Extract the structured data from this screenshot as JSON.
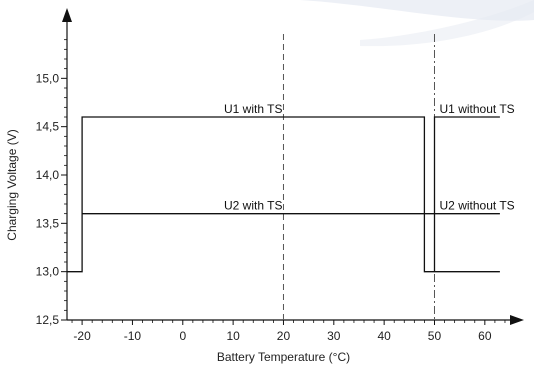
{
  "chart_data": {
    "type": "line",
    "title": "",
    "xlabel": "Battery Temperature (°C)",
    "ylabel": "Charging Voltage (V)",
    "xlim": [
      -23,
      65
    ],
    "ylim": [
      12.5,
      15.5
    ],
    "x_ticks": [
      -20,
      -10,
      0,
      10,
      20,
      30,
      40,
      50,
      60
    ],
    "x_tick_labels": [
      "-20",
      "-10",
      "0",
      "10",
      "20",
      "30",
      "40",
      "50",
      "60"
    ],
    "y_ticks": [
      12.5,
      13.0,
      13.5,
      14.0,
      14.5,
      15.0
    ],
    "y_tick_labels": [
      "12,5",
      "13,0",
      "13,5",
      "14,0",
      "14,5",
      "15,0"
    ],
    "grid": false,
    "series": [
      {
        "name": "",
        "x": [
          -23,
          -20,
          -20,
          48,
          48,
          63
        ],
        "y": [
          13.0,
          13.0,
          14.6,
          14.6,
          13.0,
          13.0
        ]
      },
      {
        "name": "",
        "x": [
          50,
          50,
          63
        ],
        "y": [
          13.0,
          14.6,
          14.6
        ]
      },
      {
        "name": "",
        "x": [
          -20,
          63
        ],
        "y": [
          13.6,
          13.6
        ]
      }
    ],
    "vertical_lines": [
      {
        "x": 20,
        "style": "dashed"
      },
      {
        "x": 50,
        "style": "dashdot"
      }
    ],
    "annotations": [
      {
        "text": "U1 with TS",
        "x": 20,
        "y": 14.6,
        "anchor": "end"
      },
      {
        "text": "U1 without TS",
        "x": 51,
        "y": 14.6,
        "anchor": "start"
      },
      {
        "text": "U2 with TS",
        "x": 20,
        "y": 13.6,
        "anchor": "end"
      },
      {
        "text": "U2 without TS",
        "x": 51,
        "y": 13.6,
        "anchor": "start"
      }
    ]
  },
  "colors": {
    "line": "#111111",
    "axis": "#111111",
    "guide": "#555555"
  }
}
